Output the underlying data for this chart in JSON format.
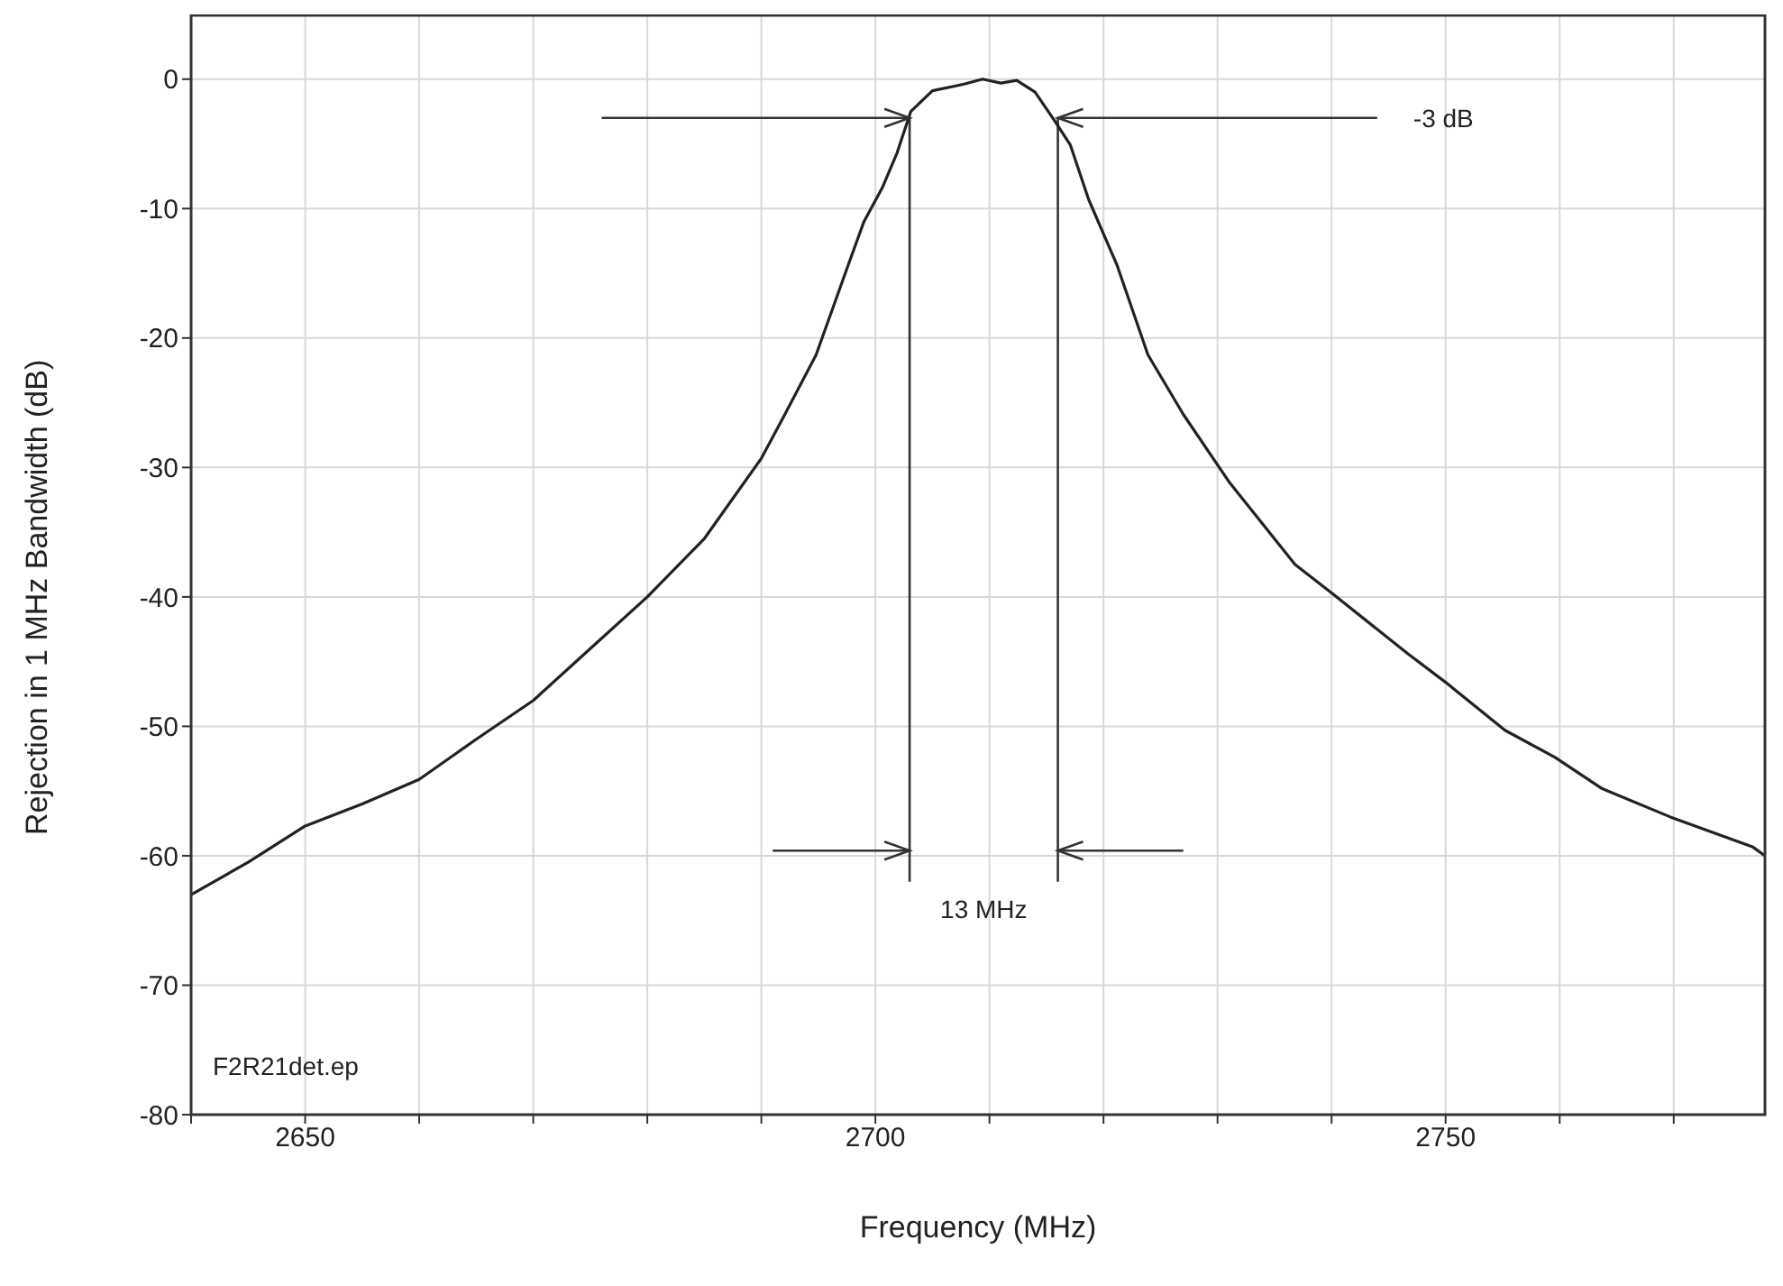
{
  "chart_data": {
    "type": "line",
    "xlabel": "Frequency (MHz)",
    "ylabel": "Rejection in 1 MHz Bandwidth (dB)",
    "x": [
      2640,
      2645,
      2650,
      2655,
      2660,
      2665,
      2670,
      2675,
      2680,
      2685,
      2690,
      2692,
      2694.8,
      2697.6,
      2699,
      2700.6,
      2701.9,
      2703.1,
      2705,
      2707.7,
      2709.4,
      2711,
      2712.4,
      2714,
      2715.7,
      2717.1,
      2718.7,
      2721.2,
      2723.9,
      2727,
      2731,
      2736.8,
      2740,
      2746.7,
      2750,
      2755.2,
      2759.6,
      2763.7,
      2769.7,
      2776.9,
      2778
    ],
    "series": [
      {
        "color": "#222222",
        "values": [
          -63,
          -60.5,
          -57.7,
          -56,
          -54.1,
          -51,
          -48,
          -44,
          -40,
          -35.5,
          -29.3,
          -26,
          -21.3,
          -14.4,
          -11,
          -8.4,
          -5.7,
          -2.5,
          -0.9,
          -0.4,
          0,
          -0.3,
          -0.1,
          -1,
          -3.2,
          -5.1,
          -9.3,
          -14.4,
          -21.3,
          -25.9,
          -31.1,
          -37.5,
          -39.7,
          -44.4,
          -46.6,
          -50.3,
          -52.4,
          -54.8,
          -57,
          -59.3,
          -60
        ]
      }
    ],
    "xlim": [
      2640,
      2778
    ],
    "xticks": [
      {
        "value": 2640,
        "label": null
      },
      2650,
      {
        "value": 2660,
        "label": null
      },
      {
        "value": 2670,
        "label": null
      },
      {
        "value": 2680,
        "label": null
      },
      {
        "value": 2690,
        "label": null
      },
      2700,
      {
        "value": 2710,
        "label": null
      },
      {
        "value": 2720,
        "label": null
      },
      {
        "value": 2730,
        "label": null
      },
      {
        "value": 2740,
        "label": null
      },
      2750,
      {
        "value": 2760,
        "label": null
      },
      {
        "value": 2770,
        "label": null
      }
    ],
    "ylim": [
      -80,
      5
    ],
    "yticks": [
      -80,
      -70,
      -60,
      -50,
      -40,
      -30,
      -20,
      -10,
      0
    ],
    "grid": true,
    "legend": false,
    "marker": "none",
    "line_style": "solid",
    "ref_lines": [
      {
        "axis": "x",
        "value": 2703
      },
      {
        "axis": "x",
        "value": 2716
      }
    ],
    "annotations": [
      "-3 dB",
      "13 MHz",
      "F2R21det.ep"
    ]
  }
}
